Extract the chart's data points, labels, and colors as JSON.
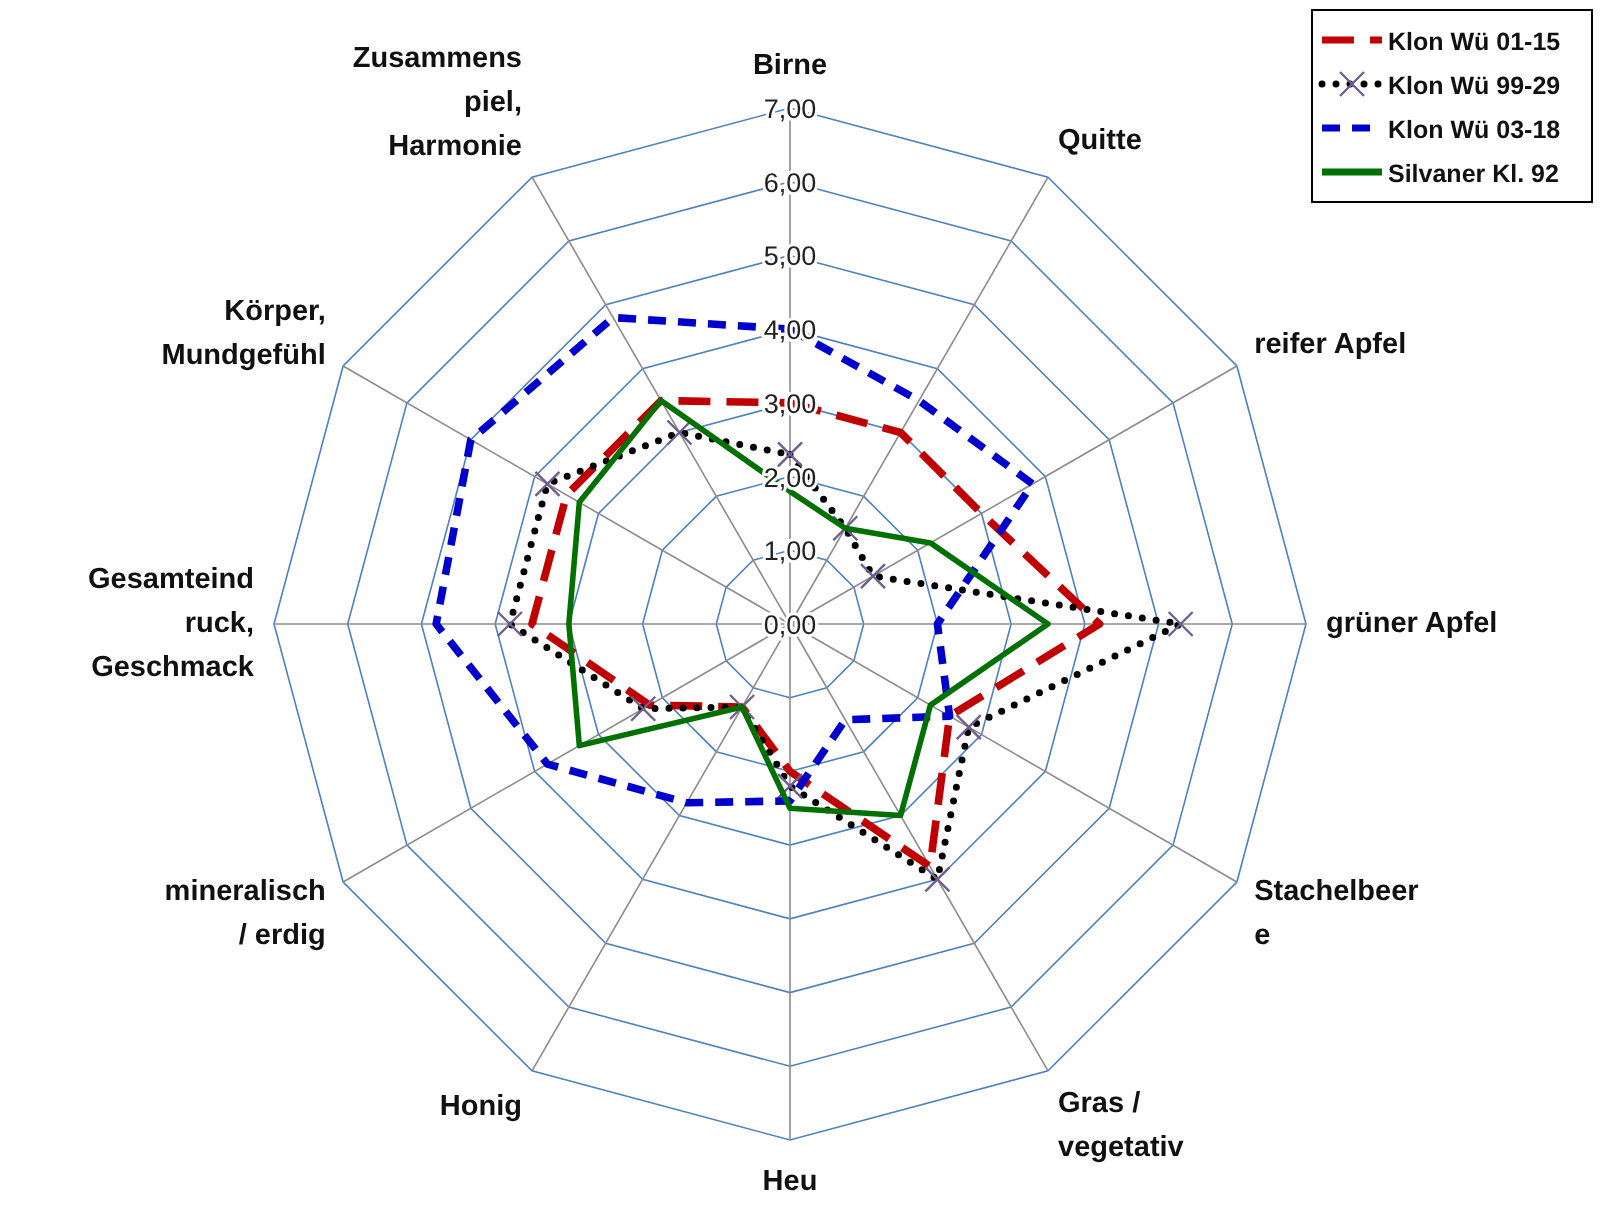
{
  "chart_data": {
    "type": "radar",
    "categories": [
      "Birne",
      "Quitte",
      "reifer Apfel",
      "grüner Apfel",
      "Stachelbeer\ne",
      "Gras /\nvegetativ",
      "Heu",
      "Honig",
      "mineralisch\n/ erdig",
      "Gesamteind\nruck,\nGeschmack",
      "Körper,\nMundgefühl",
      "Zusammens\npiel,\nHarmonie"
    ],
    "series": [
      {
        "name": "Klon Wü 01-15",
        "color": "#c00000",
        "line_style": "dashed",
        "marker": "none",
        "values": [
          3.0,
          3.0,
          3.0,
          4.2,
          2.5,
          3.8,
          2.0,
          1.3,
          2.2,
          3.5,
          3.5,
          3.5
        ]
      },
      {
        "name": "Klon Wü 99-29",
        "color": "#000000",
        "line_style": "dotted",
        "marker": "cross",
        "values": [
          2.3,
          1.5,
          1.3,
          5.3,
          2.8,
          4.0,
          2.2,
          1.3,
          2.3,
          3.8,
          3.8,
          3.0
        ]
      },
      {
        "name": "Klon Wü 03-18",
        "color": "#0000cc",
        "line_style": "dashed",
        "marker": "none",
        "values": [
          4.0,
          3.5,
          3.8,
          2.0,
          2.5,
          1.5,
          2.4,
          2.8,
          3.8,
          4.8,
          5.0,
          4.8
        ]
      },
      {
        "name": "Silvaner Kl. 92",
        "color": "#007000",
        "line_style": "solid",
        "marker": "none",
        "values": [
          1.8,
          1.5,
          2.2,
          3.5,
          2.2,
          3.0,
          2.5,
          1.3,
          3.3,
          3.0,
          3.3,
          3.5
        ]
      }
    ],
    "ylim": [
      0,
      7
    ],
    "yticks": [
      {
        "value": 0,
        "label": "0,00"
      },
      {
        "value": 1,
        "label": "1,00"
      },
      {
        "value": 2,
        "label": "2,00"
      },
      {
        "value": 3,
        "label": "3,00"
      },
      {
        "value": 4,
        "label": "4,00"
      },
      {
        "value": 5,
        "label": "5,00"
      },
      {
        "value": 6,
        "label": "6,00"
      },
      {
        "value": 7,
        "label": "7,00"
      }
    ],
    "grid": true,
    "legend": "top right"
  }
}
